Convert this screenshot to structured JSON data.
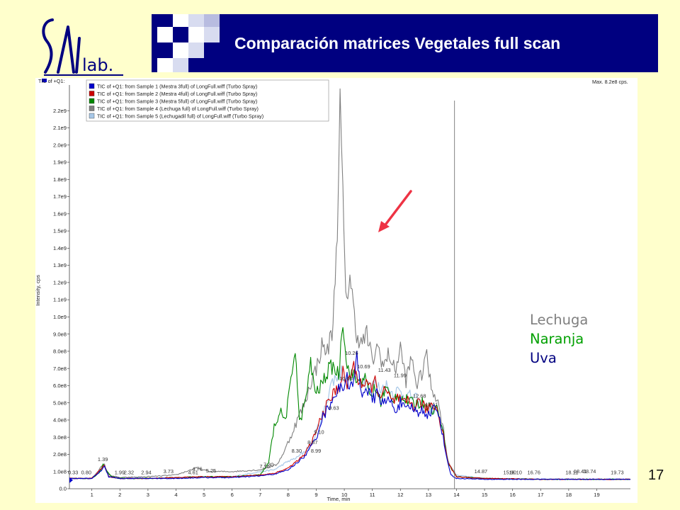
{
  "slide": {
    "title": "Comparación matrices Vegetales full scan",
    "page_number": "17",
    "background": "#ffffcc",
    "title_bar_color": "#000080",
    "logo_text": "SAL lab."
  },
  "sample_key": [
    {
      "label": "Lechuga",
      "color": "#7f7f7f"
    },
    {
      "label": "Naranja",
      "color": "#00a000"
    },
    {
      "label": "Uva",
      "color": "#000080"
    }
  ],
  "chart_data": {
    "type": "line",
    "header_left": "TIC of +Q1:",
    "header_right": "Max. 8.2e8 cps.",
    "xlabel": "Time, min",
    "ylabel": "Intensity, cps",
    "xlim": [
      0.2,
      20.2
    ],
    "ylim": [
      0,
      2300000000.0
    ],
    "x_ticks": [
      1,
      2,
      3,
      4,
      5,
      6,
      7,
      8,
      9,
      10,
      11,
      12,
      13,
      14,
      15,
      16,
      17,
      18,
      19
    ],
    "y_ticks": [
      {
        "v": 0,
        "label": "0.0"
      },
      {
        "v": 100000000.0,
        "label": "1.0e8"
      },
      {
        "v": 200000000.0,
        "label": "2.0e8"
      },
      {
        "v": 300000000.0,
        "label": "3.0e8"
      },
      {
        "v": 400000000.0,
        "label": "4.0e8"
      },
      {
        "v": 500000000.0,
        "label": "5.0e8"
      },
      {
        "v": 600000000.0,
        "label": "6.0e8"
      },
      {
        "v": 700000000.0,
        "label": "7.0e8"
      },
      {
        "v": 800000000.0,
        "label": "8.0e8"
      },
      {
        "v": 900000000.0,
        "label": "9.0e8"
      },
      {
        "v": 1000000000.0,
        "label": "1.0e9"
      },
      {
        "v": 1100000000.0,
        "label": "1.1e9"
      },
      {
        "v": 1200000000.0,
        "label": "1.2e9"
      },
      {
        "v": 1300000000.0,
        "label": "1.3e9"
      },
      {
        "v": 1400000000.0,
        "label": "1.4e9"
      },
      {
        "v": 1500000000.0,
        "label": "1.5e9"
      },
      {
        "v": 1600000000.0,
        "label": "1.6e9"
      },
      {
        "v": 1700000000.0,
        "label": "1.7e9"
      },
      {
        "v": 1800000000.0,
        "label": "1.8e9"
      },
      {
        "v": 1900000000.0,
        "label": "1.9e9"
      },
      {
        "v": 2000000000.0,
        "label": "2.0e9"
      },
      {
        "v": 2100000000.0,
        "label": "2.1e9"
      },
      {
        "v": 2200000000.0,
        "label": "2.2e9"
      }
    ],
    "vline_x": 13.93,
    "legend": [
      {
        "label": "TIC of +Q1: from Sample 1 (Mestra 3full) of LongFull.wiff (Turbo Spray)",
        "color": "#0000cc"
      },
      {
        "label": "TIC of +Q1: from Sample 2 (Mestra 4full) of LongFull.wiff (Turbo Spray)",
        "color": "#cc0000"
      },
      {
        "label": "TIC of +Q1: from Sample 3 (Mestra 5full) of LongFull.wiff (Turbo Spray)",
        "color": "#008800"
      },
      {
        "label": "TIC of +Q1: from Sample 4 (Lechuga full) of LongFull.wiff (Turbo Spray)",
        "color": "#808080"
      },
      {
        "label": "TIC of +Q1: from Sample 5 (Lechugadil full) of LongFull.wiff (Turbo Spray)",
        "color": "#a8c8e8"
      }
    ],
    "series": [
      {
        "color": "#a8c8e8",
        "x": [
          0.2,
          1.0,
          1.35,
          1.45,
          1.6,
          2.0,
          3.0,
          4.0,
          5.0,
          6.0,
          7.0,
          7.5,
          8.0,
          8.3,
          8.6,
          8.9,
          9.1,
          9.3,
          9.5,
          9.7,
          9.9,
          10.1,
          10.3,
          10.5,
          10.7,
          10.9,
          11.1,
          11.3,
          11.5,
          11.7,
          11.9,
          12.1,
          12.3,
          12.5,
          12.7,
          12.9,
          13.1,
          13.3,
          13.5,
          13.7,
          14.0,
          15.0,
          17.0,
          19.0,
          20.2
        ],
        "y": [
          60000000.0,
          60000000.0,
          120000000.0,
          130000000.0,
          70000000.0,
          60000000.0,
          60000000.0,
          65000000.0,
          70000000.0,
          70000000.0,
          100000000.0,
          110000000.0,
          160000000.0,
          180000000.0,
          220000000.0,
          280000000.0,
          380000000.0,
          460000000.0,
          600000000.0,
          650000000.0,
          680000000.0,
          640000000.0,
          660000000.0,
          620000000.0,
          640000000.0,
          600000000.0,
          610000000.0,
          580000000.0,
          600000000.0,
          560000000.0,
          570000000.0,
          550000000.0,
          540000000.0,
          530000000.0,
          500000000.0,
          480000000.0,
          460000000.0,
          460000000.0,
          340000000.0,
          150000000.0,
          80000000.0,
          60000000.0,
          55000000.0,
          55000000.0,
          55000000.0
        ]
      },
      {
        "color": "#808080",
        "x": [
          0.2,
          1.0,
          1.35,
          1.45,
          1.6,
          2.0,
          3.0,
          4.0,
          4.7,
          5.2,
          6.0,
          7.0,
          7.6,
          7.9,
          8.2,
          8.4,
          8.6,
          8.8,
          9.0,
          9.2,
          9.4,
          9.6,
          9.75,
          9.85,
          9.95,
          10.05,
          10.2,
          10.4,
          10.6,
          10.8,
          11.0,
          11.2,
          11.4,
          11.6,
          11.8,
          12.0,
          12.2,
          12.4,
          12.6,
          12.8,
          12.9,
          13.1,
          13.3,
          13.5,
          13.7,
          14.0,
          15.0,
          17.0,
          19.0,
          20.2
        ],
        "y": [
          60000000.0,
          60000000.0,
          130000000.0,
          140000000.0,
          80000000.0,
          65000000.0,
          70000000.0,
          80000000.0,
          120000000.0,
          100000000.0,
          100000000.0,
          110000000.0,
          140000000.0,
          230000000.0,
          350000000.0,
          430000000.0,
          500000000.0,
          620000000.0,
          700000000.0,
          830000000.0,
          800000000.0,
          950000000.0,
          1550000000.0,
          2200000000.0,
          1700000000.0,
          1080000000.0,
          1250000000.0,
          930000000.0,
          840000000.0,
          900000000.0,
          740000000.0,
          830000000.0,
          710000000.0,
          790000000.0,
          680000000.0,
          820000000.0,
          630000000.0,
          760000000.0,
          600000000.0,
          690000000.0,
          800000000.0,
          590000000.0,
          530000000.0,
          380000000.0,
          160000000.0,
          70000000.0,
          60000000.0,
          55000000.0,
          55000000.0,
          55000000.0
        ]
      },
      {
        "color": "#008800",
        "x": [
          0.2,
          1.0,
          1.3,
          1.4,
          1.5,
          1.7,
          2.0,
          3.0,
          4.0,
          5.0,
          6.0,
          7.0,
          7.3,
          7.5,
          7.7,
          7.9,
          8.1,
          8.25,
          8.4,
          8.6,
          8.8,
          9.0,
          9.2,
          9.4,
          9.6,
          9.8,
          9.95,
          10.1,
          10.3,
          10.5,
          10.7,
          10.9,
          11.1,
          11.3,
          11.5,
          11.7,
          11.9,
          12.1,
          12.3,
          12.5,
          12.7,
          12.9,
          13.1,
          13.3,
          13.5,
          13.7,
          14.0,
          15.0,
          17.0,
          19.0,
          20.2
        ],
        "y": [
          60000000.0,
          60000000.0,
          100000000.0,
          145000000.0,
          110000000.0,
          70000000.0,
          60000000.0,
          60000000.0,
          65000000.0,
          70000000.0,
          70000000.0,
          80000000.0,
          150000000.0,
          360000000.0,
          450000000.0,
          400000000.0,
          620000000.0,
          840000000.0,
          380000000.0,
          500000000.0,
          720000000.0,
          550000000.0,
          610000000.0,
          680000000.0,
          720000000.0,
          660000000.0,
          1000000000.0,
          700000000.0,
          660000000.0,
          620000000.0,
          660000000.0,
          540000000.0,
          580000000.0,
          510000000.0,
          590000000.0,
          500000000.0,
          560000000.0,
          520000000.0,
          510000000.0,
          490000000.0,
          500000000.0,
          500000000.0,
          460000000.0,
          470000000.0,
          350000000.0,
          150000000.0,
          70000000.0,
          60000000.0,
          55000000.0,
          55000000.0,
          55000000.0
        ]
      },
      {
        "color": "#cc0000",
        "x": [
          0.2,
          1.0,
          1.35,
          1.45,
          1.6,
          2.0,
          3.0,
          4.0,
          5.0,
          6.0,
          7.0,
          7.5,
          8.0,
          8.3,
          8.6,
          8.8,
          9.0,
          9.2,
          9.4,
          9.6,
          9.8,
          9.95,
          10.1,
          10.3,
          10.5,
          10.7,
          10.9,
          11.1,
          11.3,
          11.5,
          11.7,
          11.9,
          12.1,
          12.3,
          12.5,
          12.7,
          12.9,
          13.1,
          13.3,
          13.5,
          13.7,
          14.0,
          15.0,
          17.0,
          19.0,
          20.2
        ],
        "y": [
          60000000.0,
          60000000.0,
          120000000.0,
          135000000.0,
          70000000.0,
          60000000.0,
          60000000.0,
          65000000.0,
          70000000.0,
          70000000.0,
          80000000.0,
          90000000.0,
          120000000.0,
          160000000.0,
          200000000.0,
          260000000.0,
          330000000.0,
          430000000.0,
          490000000.0,
          550000000.0,
          590000000.0,
          670000000.0,
          600000000.0,
          710000000.0,
          640000000.0,
          600000000.0,
          590000000.0,
          620000000.0,
          540000000.0,
          570000000.0,
          500000000.0,
          530000000.0,
          490000000.0,
          510000000.0,
          480000000.0,
          510000000.0,
          460000000.0,
          490000000.0,
          470000000.0,
          340000000.0,
          150000000.0,
          70000000.0,
          60000000.0,
          55000000.0,
          55000000.0,
          55000000.0
        ]
      },
      {
        "color": "#0000cc",
        "x": [
          0.2,
          1.0,
          1.35,
          1.45,
          1.6,
          2.0,
          3.0,
          4.0,
          5.0,
          6.0,
          7.0,
          7.5,
          8.0,
          8.3,
          8.6,
          8.8,
          9.0,
          9.2,
          9.4,
          9.6,
          9.8,
          9.95,
          10.1,
          10.3,
          10.45,
          10.6,
          10.8,
          11.0,
          11.2,
          11.4,
          11.6,
          11.8,
          12.0,
          12.2,
          12.4,
          12.6,
          12.8,
          13.0,
          13.2,
          13.4,
          13.6,
          13.8,
          14.0,
          15.0,
          17.0,
          19.0,
          20.2
        ],
        "y": [
          60000000.0,
          60000000.0,
          110000000.0,
          130000000.0,
          70000000.0,
          60000000.0,
          60000000.0,
          60000000.0,
          65000000.0,
          65000000.0,
          75000000.0,
          85000000.0,
          110000000.0,
          150000000.0,
          190000000.0,
          240000000.0,
          300000000.0,
          410000000.0,
          460000000.0,
          540000000.0,
          570000000.0,
          600000000.0,
          640000000.0,
          580000000.0,
          760000000.0,
          560000000.0,
          590000000.0,
          510000000.0,
          560000000.0,
          490000000.0,
          520000000.0,
          460000000.0,
          500000000.0,
          450000000.0,
          480000000.0,
          440000000.0,
          460000000.0,
          430000000.0,
          470000000.0,
          420000000.0,
          220000000.0,
          80000000.0,
          60000000.0,
          55000000.0,
          55000000.0,
          55000000.0,
          55000000.0
        ]
      }
    ],
    "annotations": [
      {
        "x": 0.33,
        "y": 85000000.0,
        "text": "0.33"
      },
      {
        "x": 0.8,
        "y": 85000000.0,
        "text": "0.80"
      },
      {
        "x": 1.39,
        "y": 160000000.0,
        "text": "1.39"
      },
      {
        "x": 1.99,
        "y": 85000000.0,
        "text": "1.99"
      },
      {
        "x": 2.32,
        "y": 85000000.0,
        "text": "2.32"
      },
      {
        "x": 2.94,
        "y": 85000000.0,
        "text": "2.94"
      },
      {
        "x": 3.73,
        "y": 90000000.0,
        "text": "3.73"
      },
      {
        "x": 4.61,
        "y": 85000000.0,
        "text": "4.61"
      },
      {
        "x": 4.76,
        "y": 105000000.0,
        "text": "4.76"
      },
      {
        "x": 5.25,
        "y": 95000000.0,
        "text": "5.25"
      },
      {
        "x": 7.16,
        "y": 120000000.0,
        "text": "7.16"
      },
      {
        "x": 7.3,
        "y": 130000000.0,
        "text": "7.30"
      },
      {
        "x": 8.3,
        "y": 210000000.0,
        "text": "8.30"
      },
      {
        "x": 8.87,
        "y": 260000000.0,
        "text": "8.87"
      },
      {
        "x": 8.99,
        "y": 210000000.0,
        "text": "8.99"
      },
      {
        "x": 9.1,
        "y": 320000000.0,
        "text": "9.10"
      },
      {
        "x": 9.63,
        "y": 460000000.0,
        "text": "9.63"
      },
      {
        "x": 10.06,
        "y": 630000000.0,
        "text": "10.06"
      },
      {
        "x": 10.26,
        "y": 780000000.0,
        "text": "10.26"
      },
      {
        "x": 10.69,
        "y": 700000000.0,
        "text": "10.69"
      },
      {
        "x": 11.43,
        "y": 680000000.0,
        "text": "11.43"
      },
      {
        "x": 11.99,
        "y": 650000000.0,
        "text": "11.99"
      },
      {
        "x": 12.68,
        "y": 530000000.0,
        "text": "12.68"
      },
      {
        "x": 13.11,
        "y": 480000000.0,
        "text": "13.11"
      },
      {
        "x": 14.87,
        "y": 90000000.0,
        "text": "14.87"
      },
      {
        "x": 15.9,
        "y": 85000000.0,
        "text": "15.90"
      },
      {
        "x": 16.1,
        "y": 85000000.0,
        "text": "16.10"
      },
      {
        "x": 16.76,
        "y": 85000000.0,
        "text": "16.76"
      },
      {
        "x": 18.11,
        "y": 85000000.0,
        "text": "18.11"
      },
      {
        "x": 18.41,
        "y": 90000000.0,
        "text": "18.41"
      },
      {
        "x": 18.74,
        "y": 90000000.0,
        "text": "18.74"
      },
      {
        "x": 19.73,
        "y": 85000000.0,
        "text": "19.73"
      }
    ]
  }
}
